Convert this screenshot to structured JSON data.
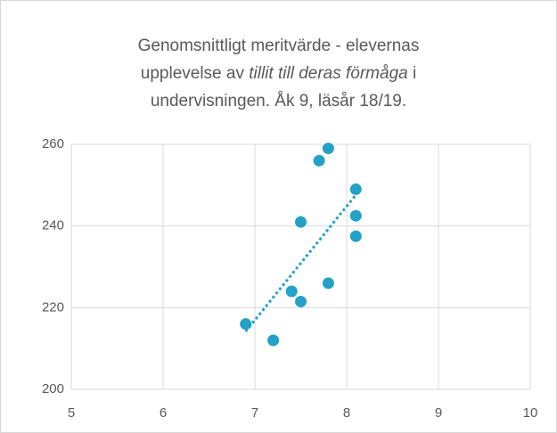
{
  "chart_data": {
    "type": "scatter",
    "title": [
      [
        "Genomsnittligt meritvärde - elevernas"
      ],
      [
        "upplevelse av ",
        "tillit till deras förmåga",
        " i"
      ],
      [
        "undervisningen. Åk 9, läsår 18/19."
      ]
    ],
    "title_italic": [
      [
        false
      ],
      [
        false,
        true,
        false
      ],
      [
        false
      ]
    ],
    "x": [
      6.9,
      7.2,
      7.4,
      7.5,
      7.5,
      7.7,
      7.8,
      7.8,
      8.1,
      8.1,
      8.1
    ],
    "values": [
      216,
      212,
      224,
      221.5,
      241,
      256,
      259,
      226,
      249,
      242.5,
      237.5
    ],
    "color": "#24a1c6",
    "trendline": "linear",
    "xlim": [
      5,
      10
    ],
    "xticks": [
      5,
      6,
      7,
      8,
      9,
      10
    ],
    "ylim": [
      200,
      260
    ],
    "yticks": [
      200,
      220,
      240,
      260
    ],
    "grid": true
  }
}
